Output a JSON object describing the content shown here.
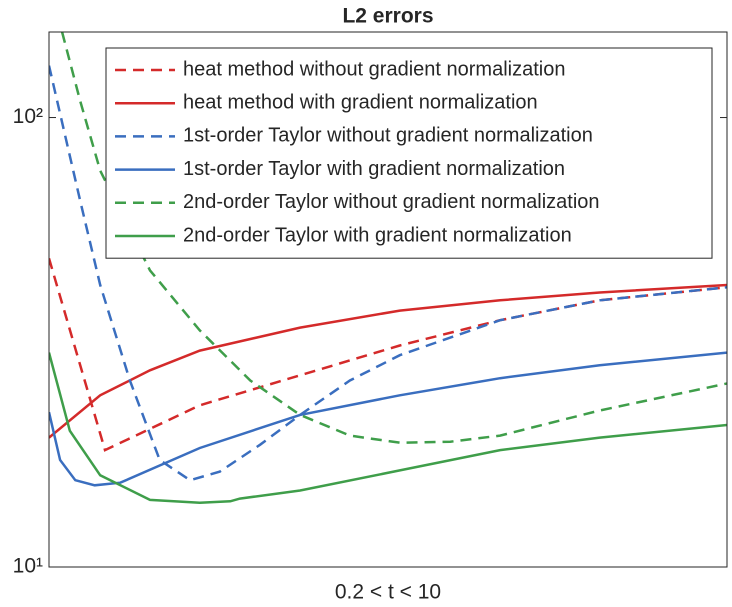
{
  "chart_data": {
    "type": "line",
    "title": "L2 errors",
    "xlabel": "0.2 < t < 10",
    "xlim": [
      0.2,
      10
    ],
    "ylim": [
      10,
      155
    ],
    "yscale": "log",
    "yticks": [
      {
        "value": 10,
        "label": "10¹"
      },
      {
        "value": 100,
        "label": "10²"
      }
    ],
    "legend": "north-east",
    "series": [
      {
        "name": "heat method without gradient normalization",
        "color": "#d42a2a",
        "linestyle": "dashed",
        "x": [
          0.2,
          1.01,
          2.38,
          3.83,
          5.27,
          6.72,
          8.16,
          10
        ],
        "values": [
          48.6,
          18.2,
          22.9,
          26.7,
          31.1,
          35.4,
          39.2,
          41.9
        ]
      },
      {
        "name": "heat method with gradient normalization",
        "color": "#d42a2a",
        "linestyle": "solid",
        "x": [
          0.2,
          0.94,
          1.66,
          2.38,
          3.83,
          5.27,
          6.72,
          8.16,
          10
        ],
        "values": [
          19.4,
          24.1,
          27.4,
          30.3,
          34.1,
          37.2,
          39.2,
          40.8,
          42.4
        ]
      },
      {
        "name": "1st-order Taylor without gradient normalization",
        "color": "#3a6ebf",
        "linestyle": "dashed",
        "x": [
          0.2,
          0.65,
          0.94,
          1.37,
          1.8,
          2.24,
          2.67,
          3.25,
          3.83,
          4.55,
          5.27,
          6.72,
          8.16,
          10
        ],
        "values": [
          130.5,
          65.4,
          42.4,
          26,
          17.3,
          15.6,
          16.3,
          18.7,
          21.8,
          26,
          29.6,
          35.4,
          39.2,
          41.9
        ]
      },
      {
        "name": "1st-order Taylor with gradient normalization",
        "color": "#3a6ebf",
        "linestyle": "solid",
        "x": [
          0.2,
          0.36,
          0.58,
          0.86,
          1.23,
          2.38,
          3.83,
          5.27,
          6.72,
          8.16,
          10
        ],
        "values": [
          22.1,
          17.3,
          15.6,
          15.2,
          15.4,
          18.4,
          21.8,
          24.1,
          26.3,
          28.1,
          30.0
        ]
      },
      {
        "name": "2nd-order Taylor without gradient normalization",
        "color": "#3f9e4a",
        "linestyle": "dashed",
        "x": [
          0.39,
          0.65,
          0.94,
          1.66,
          2.38,
          3.11,
          3.83,
          4.55,
          5.27,
          6.0,
          6.72,
          8.16,
          10
        ],
        "values": [
          155,
          109,
          76.2,
          45.7,
          33.6,
          26,
          21.8,
          19.6,
          18.9,
          19,
          19.6,
          22.3,
          25.6
        ]
      },
      {
        "name": "2nd-order Taylor with gradient normalization",
        "color": "#3f9e4a",
        "linestyle": "solid",
        "x": [
          0.2,
          0.5,
          0.94,
          1.66,
          2.38,
          2.82,
          2.96,
          3.83,
          5.27,
          6.72,
          8.16,
          10
        ],
        "values": [
          30,
          20.1,
          16,
          14.1,
          13.9,
          14,
          14.2,
          14.8,
          16.4,
          18.2,
          19.4,
          20.7
        ]
      }
    ]
  }
}
